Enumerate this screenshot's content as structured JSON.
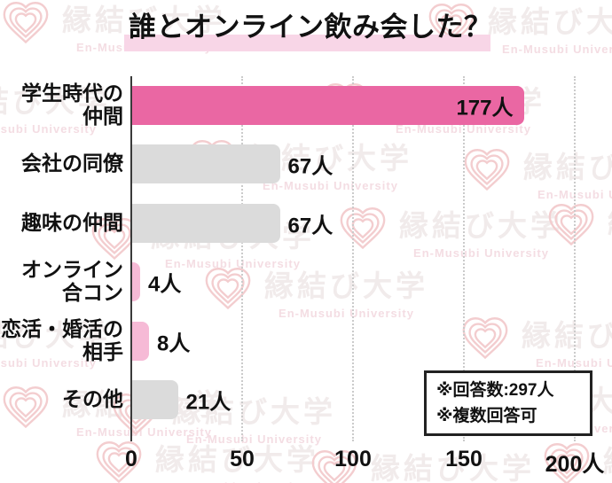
{
  "page": {
    "background": "#ffffff"
  },
  "chart_data": {
    "type": "bar",
    "orientation": "horizontal",
    "title": "誰とオンライン飲み会した？",
    "categories": [
      "学生時代の仲間",
      "会社の同僚",
      "趣味の仲間",
      "オンライン合コン",
      "恋活・婚活の相手",
      "その他"
    ],
    "categories_display": [
      "学生時代の\n仲間",
      "会社の同僚",
      "趣味の仲間",
      "オンライン\n合コン",
      "恋活・婚活の\n相手",
      "その他"
    ],
    "values": [
      177,
      67,
      67,
      4,
      8,
      21
    ],
    "value_labels": [
      "177人",
      "67人",
      "67人",
      "4人",
      "8人",
      "21人"
    ],
    "value_label_inside": [
      true,
      false,
      false,
      false,
      false,
      false
    ],
    "bar_color_keys": [
      "accent",
      "muted",
      "muted",
      "accent_light",
      "accent_light",
      "muted"
    ],
    "xlim": [
      0,
      200
    ],
    "x_ticks": [
      0,
      50,
      100,
      150,
      200
    ],
    "x_tick_labels": [
      "0",
      "50",
      "100",
      "150",
      "200人"
    ],
    "grid": "vertical-dotted",
    "legend": "none",
    "unit": "人",
    "annotations": [
      "※回答数:297人",
      "※複数回答可"
    ]
  },
  "colors": {
    "accent": "#ea67a3",
    "accent_light": "#f6bad6",
    "muted": "#dbdbdb",
    "title_highlight": "#f8d6e7",
    "axis_line": "#3a3a3a",
    "gridline": "#cbcbcb",
    "text": "#111111"
  },
  "watermark": {
    "title": "縁結び大学",
    "subtitle": "En-Musubi University"
  }
}
